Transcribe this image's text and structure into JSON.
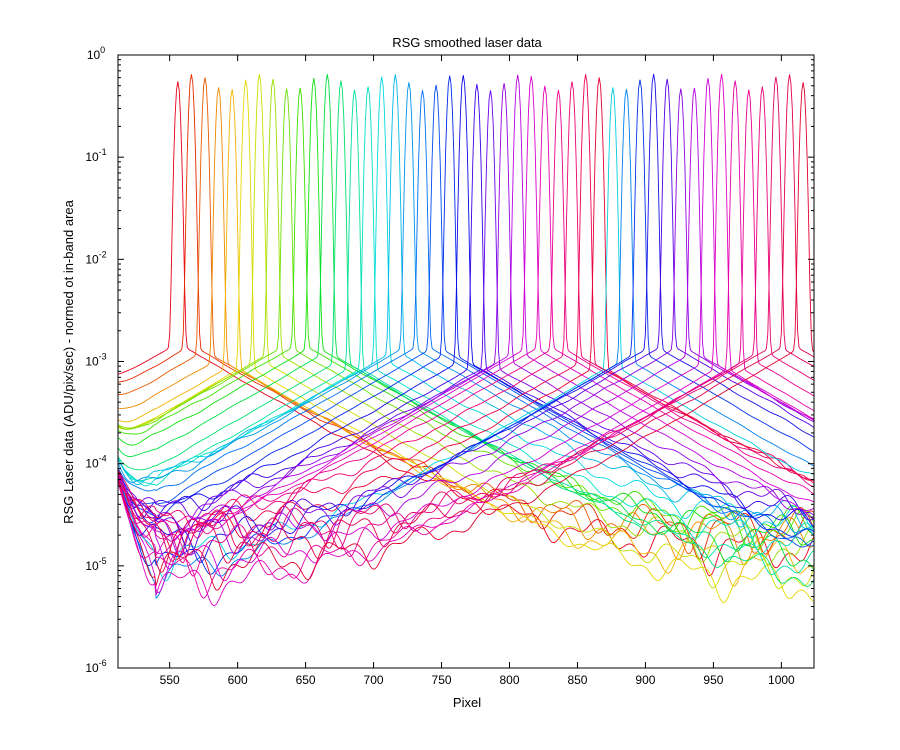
{
  "chart_data": {
    "type": "line",
    "title": "RSG smoothed laser data",
    "xlabel": "Pixel",
    "ylabel": "RSG Laser data (ADU/pix/sec) - normed ot in-band area",
    "xlim": [
      512,
      1024
    ],
    "ylim": [
      1e-06,
      1
    ],
    "yscale": "log",
    "grid": false,
    "legend": "none",
    "x_ticks": [
      "550",
      "600",
      "650",
      "700",
      "750",
      "800",
      "850",
      "900",
      "950",
      "1000"
    ],
    "y_ticks": [
      {
        "base": "10",
        "exp": "-6"
      },
      {
        "base": "10",
        "exp": "-5"
      },
      {
        "base": "10",
        "exp": "-4"
      },
      {
        "base": "10",
        "exp": "-3"
      },
      {
        "base": "10",
        "exp": "-2"
      },
      {
        "base": "10",
        "exp": "-1"
      },
      {
        "base": "10",
        "exp": "0"
      }
    ],
    "colormap": "hsv (red → yellow → green → cyan → blue → magenta)",
    "series": [
      {
        "peak_pixel": 556,
        "color": "#e8001a"
      },
      {
        "peak_pixel": 566,
        "color": "#e82a00"
      },
      {
        "peak_pixel": 576,
        "color": "#ea5a00"
      },
      {
        "peak_pixel": 586,
        "color": "#ee8a00"
      },
      {
        "peak_pixel": 596,
        "color": "#f2b400"
      },
      {
        "peak_pixel": 606,
        "color": "#e6d800"
      },
      {
        "peak_pixel": 616,
        "color": "#c8e000"
      },
      {
        "peak_pixel": 626,
        "color": "#9ae000"
      },
      {
        "peak_pixel": 636,
        "color": "#6ae000"
      },
      {
        "peak_pixel": 646,
        "color": "#3ae000"
      },
      {
        "peak_pixel": 656,
        "color": "#10e010"
      },
      {
        "peak_pixel": 666,
        "color": "#00e040"
      },
      {
        "peak_pixel": 676,
        "color": "#00e070"
      },
      {
        "peak_pixel": 686,
        "color": "#00e0a0"
      },
      {
        "peak_pixel": 696,
        "color": "#00e0c8"
      },
      {
        "peak_pixel": 706,
        "color": "#00dae0"
      },
      {
        "peak_pixel": 716,
        "color": "#00b8e8"
      },
      {
        "peak_pixel": 726,
        "color": "#0094ee"
      },
      {
        "peak_pixel": 736,
        "color": "#0070f2"
      },
      {
        "peak_pixel": 746,
        "color": "#004cf2"
      },
      {
        "peak_pixel": 756,
        "color": "#0028ee"
      },
      {
        "peak_pixel": 766,
        "color": "#0a0ae8"
      },
      {
        "peak_pixel": 776,
        "color": "#3a00e8"
      },
      {
        "peak_pixel": 786,
        "color": "#6a00e8"
      },
      {
        "peak_pixel": 796,
        "color": "#9400e6"
      },
      {
        "peak_pixel": 806,
        "color": "#b800e0"
      },
      {
        "peak_pixel": 816,
        "color": "#d800d0"
      },
      {
        "peak_pixel": 826,
        "color": "#e800b0"
      },
      {
        "peak_pixel": 836,
        "color": "#ee0090"
      },
      {
        "peak_pixel": 846,
        "color": "#f00070"
      },
      {
        "peak_pixel": 856,
        "color": "#ee0050"
      },
      {
        "peak_pixel": 866,
        "color": "#e80034"
      },
      {
        "peak_pixel": 876,
        "color": "#00cfe0"
      },
      {
        "peak_pixel": 886,
        "color": "#0080f0"
      },
      {
        "peak_pixel": 896,
        "color": "#0030ee"
      },
      {
        "peak_pixel": 906,
        "color": "#1a10e8"
      },
      {
        "peak_pixel": 916,
        "color": "#5000e8"
      },
      {
        "peak_pixel": 926,
        "color": "#8a00e6"
      },
      {
        "peak_pixel": 936,
        "color": "#b000e0"
      },
      {
        "peak_pixel": 946,
        "color": "#d000d4"
      },
      {
        "peak_pixel": 956,
        "color": "#e000c0"
      },
      {
        "peak_pixel": 966,
        "color": "#e800a8"
      },
      {
        "peak_pixel": 976,
        "color": "#ea0090"
      },
      {
        "peak_pixel": 986,
        "color": "#e80078"
      },
      {
        "peak_pixel": 996,
        "color": "#e60060"
      },
      {
        "peak_pixel": 1006,
        "color": "#e40048"
      },
      {
        "peak_pixel": 1016,
        "color": "#e20030"
      }
    ]
  }
}
